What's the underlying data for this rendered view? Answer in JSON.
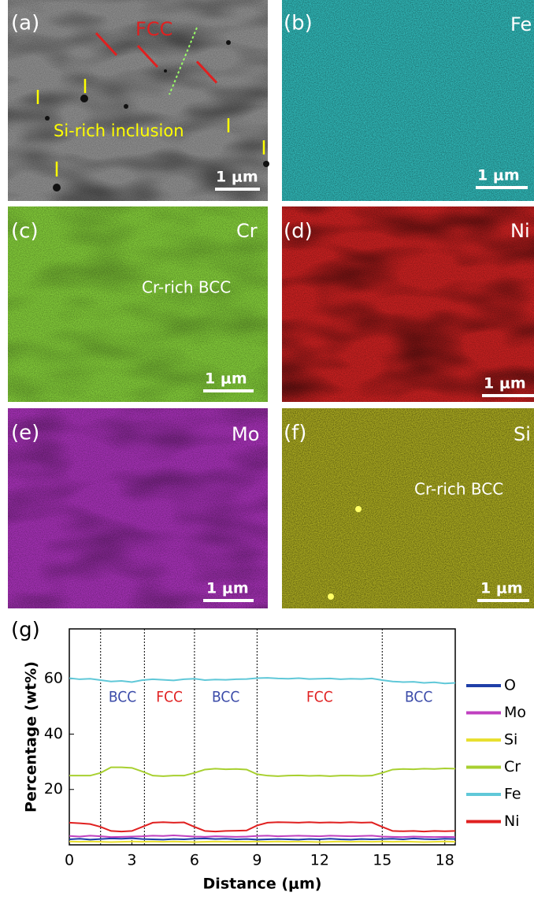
{
  "panels": [
    {
      "label": "(a)",
      "notes": [
        "FCC",
        "Si-rich inclusion"
      ],
      "scale": "1 μm"
    },
    {
      "label": "(b)",
      "element": "Fe",
      "scale": "1 μm"
    },
    {
      "label": "(c)",
      "element": "Cr",
      "notes": [
        "Cr-rich BCC"
      ],
      "scale": "1 μm"
    },
    {
      "label": "(d)",
      "element": "Ni",
      "scale": "1 μm"
    },
    {
      "label": "(e)",
      "element": "Mo",
      "scale": "1 μm"
    },
    {
      "label": "(f)",
      "element": "Si",
      "notes": [
        "Cr-rich BCC"
      ],
      "scale": "1 μm"
    }
  ],
  "chart_data": {
    "type": "line",
    "panel_label": "(g)",
    "xlabel": "Distance (μm)",
    "ylabel": "Percentage (wt%)",
    "xlim": [
      0,
      18.5
    ],
    "xticks": [
      0,
      3,
      6,
      9,
      12,
      15,
      18
    ],
    "ylim": [
      0,
      78
    ],
    "yticks": [
      20,
      40,
      60
    ],
    "boundaries": [
      1.5,
      3.6,
      6,
      9,
      15
    ],
    "regions": [
      {
        "label": "BCC",
        "color": "#3a4aa8"
      },
      {
        "label": "FCC",
        "color": "#e02020"
      },
      {
        "label": "BCC",
        "color": "#3a4aa8"
      },
      {
        "label": "FCC",
        "color": "#e02020"
      },
      {
        "label": "BCC",
        "color": "#3a4aa8"
      }
    ],
    "x": [
      0,
      0.5,
      1,
      1.5,
      2,
      2.5,
      3,
      3.5,
      4,
      4.5,
      5,
      5.5,
      6,
      6.5,
      7,
      7.5,
      8,
      8.5,
      9,
      9.5,
      10,
      10.5,
      11,
      11.5,
      12,
      12.5,
      13,
      13.5,
      14,
      14.5,
      15,
      15.5,
      16,
      16.5,
      17,
      17.5,
      18,
      18.5
    ],
    "series": [
      {
        "name": "O",
        "color": "#1f3fa8",
        "values": [
          2,
          2.2,
          1.9,
          2.1,
          2.3,
          2.2,
          2.4,
          2.1,
          2,
          1.9,
          2.1,
          2,
          2.2,
          2.3,
          2.1,
          2.2,
          2,
          2.1,
          1.9,
          2,
          2.1,
          2,
          1.9,
          2.1,
          2,
          2.2,
          2,
          1.9,
          2.1,
          2,
          2.1,
          2.2,
          2,
          2.3,
          2.1,
          2,
          2.2,
          2.1
        ]
      },
      {
        "name": "Mo",
        "color": "#c040c0",
        "values": [
          3.2,
          3,
          3.3,
          3.1,
          2.8,
          2.9,
          3,
          3.1,
          3.3,
          3.2,
          3.4,
          3.2,
          3,
          2.9,
          3.1,
          3,
          2.9,
          3,
          3.2,
          3.3,
          3.1,
          3.2,
          3.3,
          3.2,
          3.1,
          3.3,
          3.2,
          3.1,
          3.2,
          3.3,
          3,
          2.9,
          2.8,
          3,
          2.9,
          2.8,
          2.9,
          2.8
        ]
      },
      {
        "name": "Si",
        "color": "#e8e030",
        "values": [
          1.2,
          1.1,
          1.2,
          1.1,
          1,
          1.1,
          1.2,
          1.1,
          1.2,
          1.1,
          1.2,
          1.1,
          1,
          1.1,
          1.2,
          1.1,
          1.2,
          1.1,
          1.2,
          1.1,
          1.2,
          1.1,
          1.2,
          1.1,
          1,
          1.1,
          1.2,
          1.1,
          1.2,
          1.1,
          1.2,
          1.1,
          1.2,
          1.1,
          1,
          1.1,
          1.2,
          1.1
        ]
      },
      {
        "name": "Cr",
        "color": "#a8d030",
        "values": [
          25,
          25,
          25,
          26,
          28,
          28,
          27.8,
          26.5,
          25,
          24.8,
          25,
          25,
          26,
          27.2,
          27.5,
          27.3,
          27.4,
          27.2,
          25.5,
          25,
          24.8,
          25,
          25.1,
          24.9,
          25,
          24.8,
          25,
          25,
          24.9,
          25,
          26,
          27.2,
          27.4,
          27.3,
          27.5,
          27.4,
          27.6,
          27.5
        ]
      },
      {
        "name": "Fe",
        "color": "#60c8d8",
        "values": [
          60.2,
          59.8,
          60,
          59.5,
          59,
          59.2,
          58.8,
          59.5,
          59.8,
          59.6,
          59.4,
          59.8,
          60,
          59.5,
          59.7,
          59.6,
          59.8,
          59.9,
          60.2,
          60.3,
          60.1,
          60,
          60.2,
          59.9,
          60,
          60.1,
          59.8,
          60,
          59.9,
          60.1,
          59.5,
          59,
          58.8,
          58.9,
          58.5,
          58.7,
          58.3,
          58.5
        ]
      },
      {
        "name": "Ni",
        "color": "#e02020",
        "values": [
          8,
          7.8,
          7.5,
          6.5,
          5,
          4.8,
          5,
          6.5,
          8,
          8.2,
          8,
          8.1,
          6.5,
          5,
          4.8,
          5,
          5.1,
          5.2,
          7,
          8,
          8.2,
          8.1,
          8,
          8.2,
          8,
          8.1,
          8,
          8.2,
          8,
          8.1,
          6.5,
          5,
          4.9,
          5,
          4.8,
          5,
          4.9,
          5
        ]
      }
    ]
  }
}
